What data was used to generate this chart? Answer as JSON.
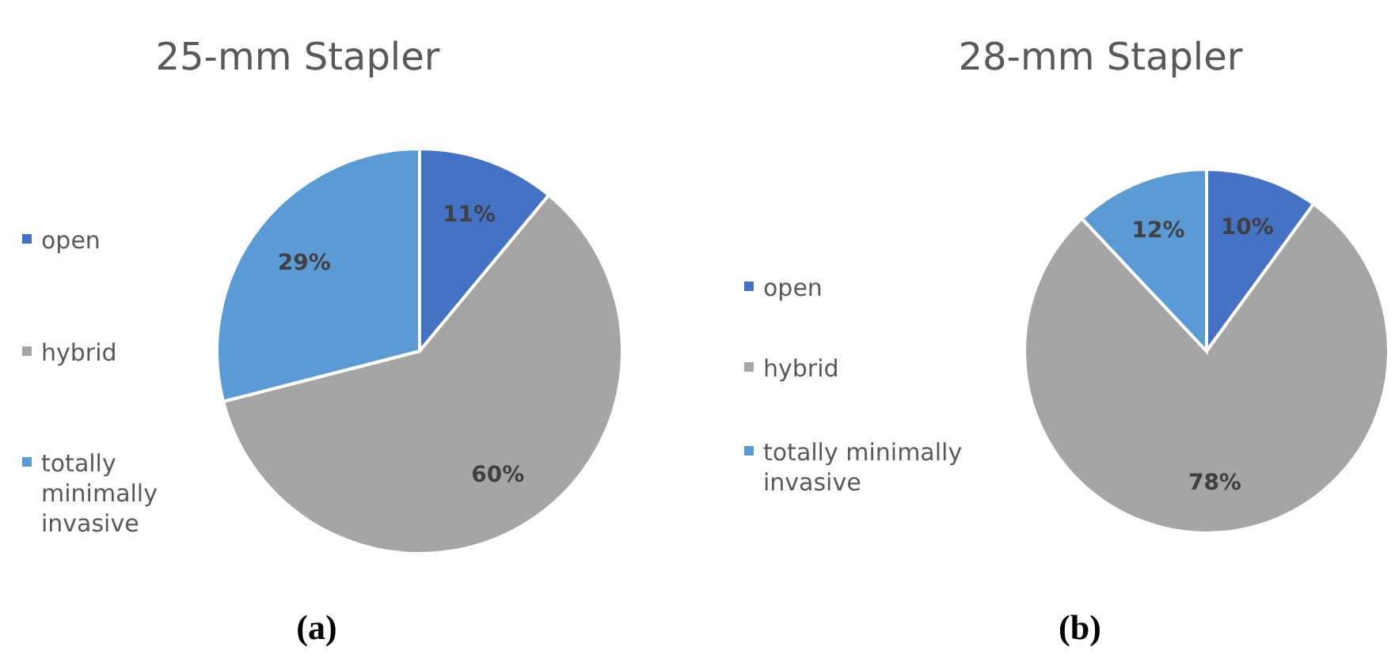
{
  "chart_data": [
    {
      "type": "pie",
      "title": "25-mm Stapler",
      "categories": [
        "open",
        "hybrid",
        "totally minimally invasive"
      ],
      "values": [
        11,
        60,
        29
      ],
      "value_labels": [
        "11%",
        "60%",
        "29%"
      ],
      "colors": [
        "#4472c4",
        "#a5a5a5",
        "#5b9bd5"
      ],
      "legend": "left",
      "annotations": [
        "(a)"
      ]
    },
    {
      "type": "pie",
      "title": "28-mm Stapler",
      "categories": [
        "open",
        "hybrid",
        "totally minimally invasive"
      ],
      "values": [
        10,
        78,
        12
      ],
      "value_labels": [
        "10%",
        "78%",
        "12%"
      ],
      "colors": [
        "#4472c4",
        "#a5a5a5",
        "#5b9bd5"
      ],
      "legend": "left",
      "annotations": [
        "(b)"
      ]
    }
  ]
}
